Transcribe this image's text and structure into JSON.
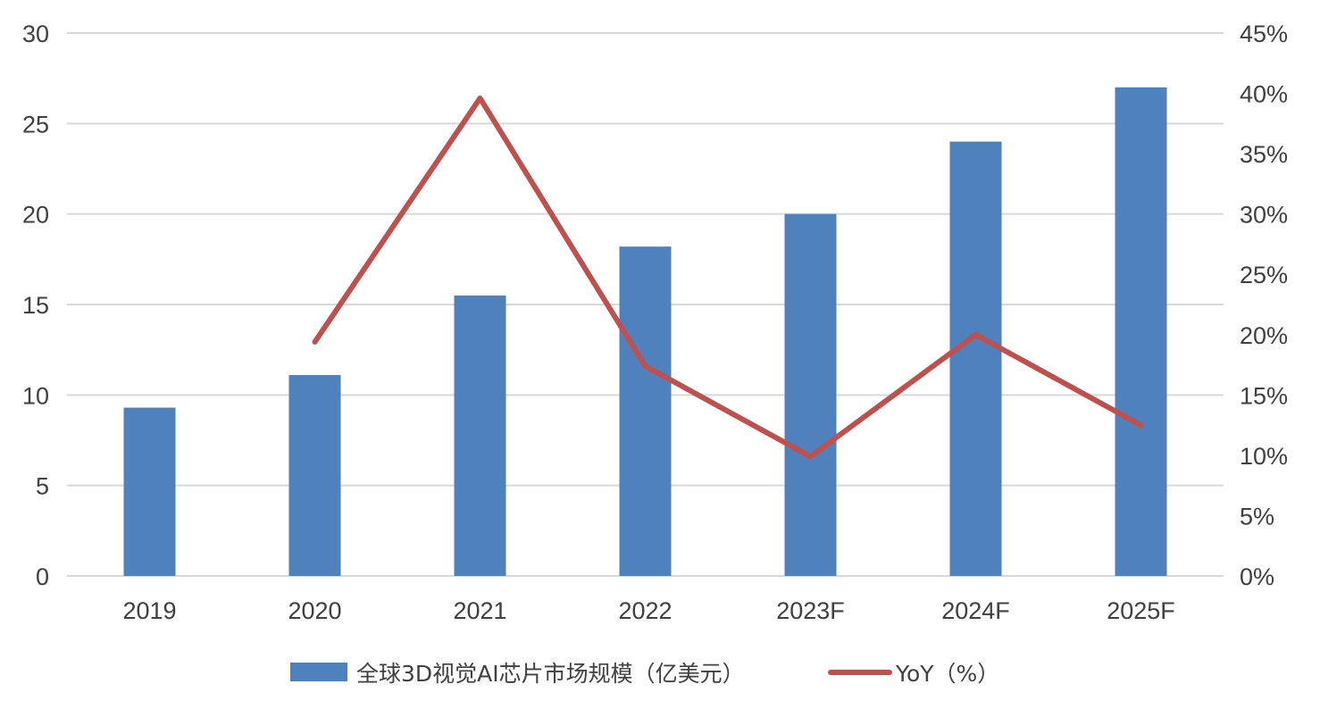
{
  "chart_data": {
    "type": "bar",
    "categories": [
      "2019",
      "2020",
      "2021",
      "2022",
      "2023F",
      "2024F",
      "2025F"
    ],
    "series": [
      {
        "name": "全球3D视觉AI芯片市场规模（亿美元）",
        "type": "bar",
        "axis": "left",
        "color": "#4F81BD",
        "values": [
          9.3,
          11.1,
          15.5,
          18.2,
          20.0,
          24.0,
          27.0
        ]
      },
      {
        "name": "YoY（%）",
        "type": "line",
        "axis": "right",
        "color": "#C0504D",
        "values": [
          null,
          19.4,
          39.6,
          17.4,
          9.9,
          20.0,
          12.5
        ]
      }
    ],
    "y_left": {
      "ylim": [
        0,
        30
      ],
      "ticks": [
        0,
        5,
        10,
        15,
        20,
        25,
        30
      ],
      "tick_labels": [
        "0",
        "5",
        "10",
        "15",
        "20",
        "25",
        "30"
      ]
    },
    "y_right": {
      "ylim": [
        0,
        45
      ],
      "ticks": [
        0,
        5,
        10,
        15,
        20,
        25,
        30,
        35,
        40,
        45
      ],
      "tick_labels": [
        "0%",
        "5%",
        "10%",
        "15%",
        "20%",
        "25%",
        "30%",
        "35%",
        "40%",
        "45%"
      ]
    },
    "grid": true,
    "legend_position": "bottom",
    "gridline_color": "#D9D9D9",
    "text_color": "#404040"
  }
}
